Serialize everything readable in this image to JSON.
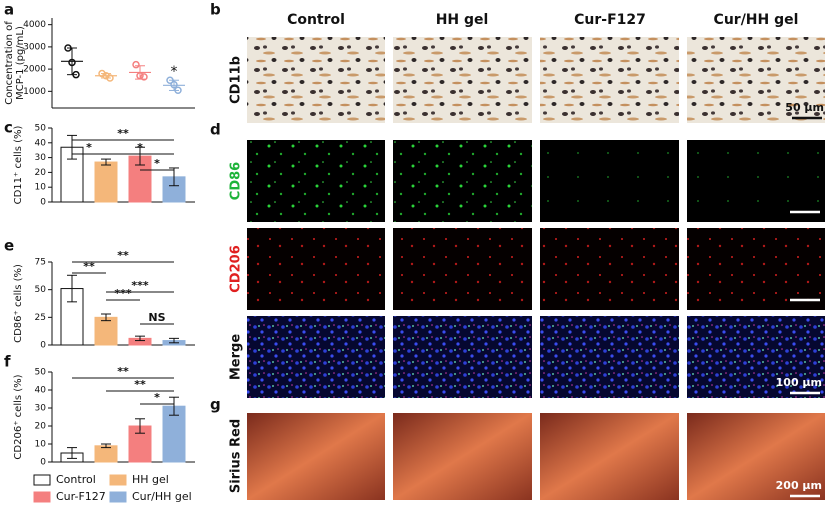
{
  "panel_labels": [
    "a",
    "b",
    "c",
    "d",
    "e",
    "f",
    "g"
  ],
  "columns": [
    "Control",
    "HH gel",
    "Cur-F127",
    "Cur/HH gel"
  ],
  "rows": [
    "CD11b",
    "CD86",
    "CD206",
    "Merge",
    "Sirius Red"
  ],
  "scale_bars": [
    "50 μm",
    "100 μm",
    "200 μm"
  ],
  "groups": [
    {
      "name": "Control",
      "color": "#ffffff"
    },
    {
      "name": "HH gel",
      "color": "#f4b77a"
    },
    {
      "name": "Cur-F127",
      "color": "#f47f7f"
    },
    {
      "name": "Cur/HH gel",
      "color": "#8fb0da"
    }
  ],
  "chart_data": [
    {
      "type": "scatter",
      "ylabel": [
        "Concentration of",
        "MCP-1 (pg/mL)"
      ],
      "points": [
        [
          2950,
          2300,
          1750
        ],
        [
          1800,
          1700,
          1600
        ],
        [
          2200,
          1700,
          1650
        ],
        [
          1500,
          1300,
          1050
        ]
      ],
      "values": [
        2350,
        1700,
        1850,
        1270
      ],
      "errors": [
        600,
        100,
        300,
        230
      ],
      "ylim": [
        250,
        4300
      ],
      "yticks": [
        1000,
        2000,
        3000,
        4000
      ],
      "annotations": [
        "*"
      ]
    },
    {
      "type": "bar",
      "ylabel": "CD11⁺ cells (%)",
      "values": [
        37,
        27,
        31,
        17
      ],
      "errors": [
        8,
        2,
        6,
        6
      ],
      "ylim": [
        0,
        50
      ],
      "yticks": [
        0,
        10,
        20,
        30,
        40,
        50
      ],
      "significance": [
        "**",
        "*",
        "*",
        "*"
      ]
    },
    {
      "type": "bar",
      "ylabel": "CD86⁺ cells (%)",
      "values": [
        51,
        25,
        6,
        4
      ],
      "errors": [
        12,
        3,
        2,
        2
      ],
      "ylim": [
        0,
        75
      ],
      "yticks": [
        0,
        25,
        50,
        75
      ],
      "significance": [
        "**",
        "**",
        "***",
        "***",
        "NS"
      ]
    },
    {
      "type": "bar",
      "ylabel": "CD206⁺ cells (%)",
      "values": [
        5,
        9,
        20,
        31
      ],
      "errors": [
        3,
        1,
        4,
        5
      ],
      "ylim": [
        0,
        50
      ],
      "yticks": [
        0,
        10,
        20,
        30,
        40,
        50
      ],
      "significance": [
        "**",
        "**",
        "*"
      ]
    }
  ]
}
